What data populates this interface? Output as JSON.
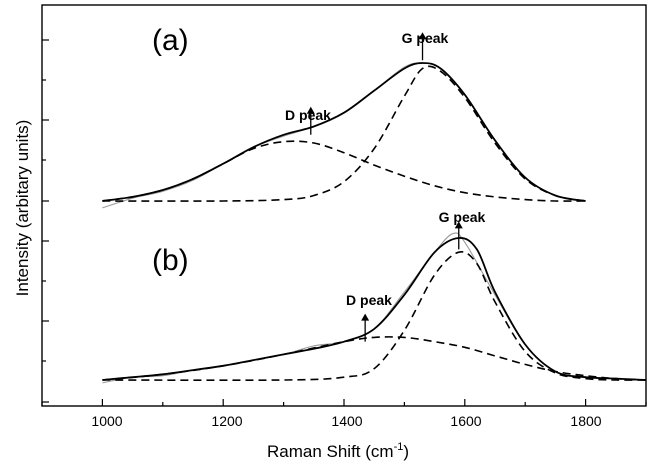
{
  "chart_data": {
    "type": "line",
    "xlabel": "Raman Shift (cm",
    "xlabel_sup": "-1",
    "xlabel_close": ")",
    "ylabel": "Intensity (arbitary units)",
    "xlim": [
      900,
      1900
    ],
    "x_ticks": [
      "1000",
      "1200",
      "1400",
      "1600",
      "1800"
    ],
    "grid": false,
    "legend": "none",
    "panels": [
      {
        "label": "(a)",
        "x_range": [
          1000,
          1800
        ],
        "baseline": 0,
        "ylim": [
          0,
          1.15
        ],
        "series": [
          {
            "style": "raw-gray",
            "x": [
              1000,
              1050,
              1100,
              1150,
              1200,
              1250,
              1300,
              1350,
              1400,
              1450,
              1500,
              1530,
              1560,
              1600,
              1650,
              1700,
              1750,
              1800
            ],
            "y": [
              -0.05,
              0.02,
              0.07,
              0.15,
              0.27,
              0.39,
              0.47,
              0.54,
              0.64,
              0.8,
              0.97,
              1.0,
              0.96,
              0.77,
              0.44,
              0.17,
              0.04,
              0.0
            ]
          },
          {
            "style": "solid",
            "x": [
              1000,
              1050,
              1100,
              1150,
              1200,
              1250,
              1300,
              1350,
              1400,
              1450,
              1500,
              1530,
              1560,
              1600,
              1650,
              1700,
              1750,
              1800
            ],
            "y": [
              0.0,
              0.03,
              0.08,
              0.16,
              0.27,
              0.39,
              0.48,
              0.54,
              0.64,
              0.8,
              0.96,
              1.0,
              0.96,
              0.77,
              0.44,
              0.17,
              0.04,
              0.0
            ]
          },
          {
            "style": "dashed",
            "x": [
              1000,
              1050,
              1100,
              1150,
              1200,
              1250,
              1300,
              1350,
              1400,
              1450,
              1500,
              1550,
              1600,
              1650,
              1700,
              1750,
              1800
            ],
            "y": [
              0.0,
              0.03,
              0.08,
              0.16,
              0.27,
              0.38,
              0.43,
              0.42,
              0.35,
              0.26,
              0.18,
              0.11,
              0.06,
              0.03,
              0.01,
              0.0,
              0.0
            ]
          },
          {
            "style": "dashed",
            "x": [
              1000,
              1200,
              1300,
              1350,
              1400,
              1450,
              1500,
              1530,
              1560,
              1600,
              1650,
              1700,
              1750,
              1800
            ],
            "y": [
              0.0,
              0.0,
              0.01,
              0.04,
              0.14,
              0.38,
              0.76,
              0.96,
              0.94,
              0.75,
              0.42,
              0.16,
              0.04,
              0.0
            ]
          }
        ],
        "annotations": [
          {
            "text": "D peak",
            "x": 1345,
            "y": 0.48,
            "arrow_to": 0.95
          },
          {
            "text": "G peak",
            "x": 1530,
            "y": 1.02,
            "arrow_to": 1.13
          }
        ]
      },
      {
        "label": "(b)",
        "x_range": [
          1000,
          1900
        ],
        "baseline": 0,
        "ylim": [
          0,
          1.15
        ],
        "series": [
          {
            "style": "raw-gray",
            "x": [
              1000,
              1050,
              1100,
              1150,
              1200,
              1250,
              1300,
              1350,
              1400,
              1450,
              1500,
              1550,
              1580,
              1600,
              1650,
              1700,
              1750,
              1800,
              1850,
              1900
            ],
            "y": [
              -0.02,
              0.02,
              0.03,
              0.07,
              0.1,
              0.14,
              0.18,
              0.24,
              0.27,
              0.36,
              0.62,
              0.9,
              1.03,
              0.97,
              0.6,
              0.25,
              0.06,
              0.02,
              0.01,
              0.0
            ]
          },
          {
            "style": "solid",
            "x": [
              1000,
              1050,
              1100,
              1150,
              1200,
              1250,
              1300,
              1350,
              1400,
              1450,
              1500,
              1550,
              1590,
              1620,
              1650,
              1700,
              1750,
              1800,
              1850,
              1900
            ],
            "y": [
              0.0,
              0.02,
              0.04,
              0.07,
              0.1,
              0.14,
              0.18,
              0.22,
              0.27,
              0.36,
              0.6,
              0.9,
              1.0,
              0.92,
              0.62,
              0.25,
              0.06,
              0.02,
              0.01,
              0.0
            ]
          },
          {
            "style": "dashed",
            "x": [
              1000,
              1100,
              1200,
              1300,
              1400,
              1450,
              1500,
              1550,
              1600,
              1650,
              1700,
              1750,
              1800,
              1850,
              1900
            ],
            "y": [
              0.0,
              0.04,
              0.1,
              0.18,
              0.27,
              0.3,
              0.3,
              0.27,
              0.23,
              0.17,
              0.11,
              0.06,
              0.03,
              0.01,
              0.0
            ]
          },
          {
            "style": "dashed",
            "x": [
              1000,
              1300,
              1400,
              1450,
              1500,
              1550,
              1590,
              1620,
              1650,
              1700,
              1750,
              1800,
              1850,
              1900
            ],
            "y": [
              0.0,
              0.0,
              0.02,
              0.08,
              0.35,
              0.74,
              0.9,
              0.82,
              0.55,
              0.2,
              0.05,
              0.01,
              0.0,
              0.0
            ]
          }
        ],
        "annotations": [
          {
            "text": "D peak",
            "x": 1435,
            "y": 0.27,
            "arrow_to": 0.58
          },
          {
            "text": "G peak",
            "x": 1590,
            "y": 0.92,
            "arrow_to": 1.2
          }
        ]
      }
    ]
  }
}
